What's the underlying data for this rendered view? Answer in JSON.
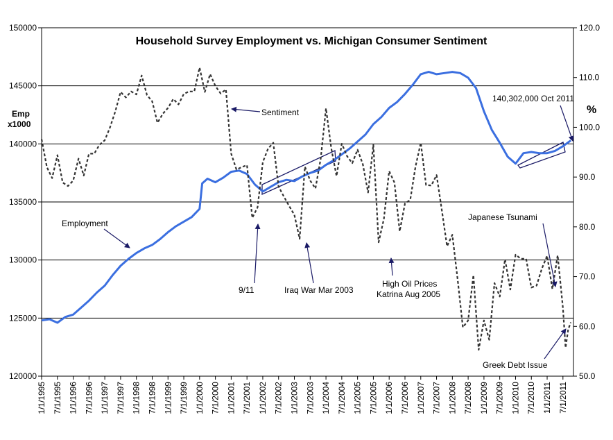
{
  "chart_data": {
    "type": "line",
    "title": "Household Survey Employment vs. Michigan Consumer Sentiment",
    "ylabel_left": [
      "Emp",
      "x1000"
    ],
    "ylabel_right": "%",
    "ylim_left": [
      120000,
      150000
    ],
    "ylim_right": [
      50,
      120
    ],
    "y_ticks_left": [
      "150000",
      "145000",
      "140000",
      "135000",
      "130000",
      "125000",
      "120000"
    ],
    "y_ticks_right": [
      "120.0",
      "110.0",
      "100.0",
      "90.0",
      "80.0",
      "70.0",
      "60.0",
      "50.0"
    ],
    "x_ticks": [
      "1/1/1995",
      "7/1/1995",
      "1/1/1996",
      "7/1/1996",
      "1/1/1997",
      "7/1/1997",
      "1/1/1998",
      "7/1/1998",
      "1/1/1999",
      "7/1/1999",
      "1/1/2000",
      "7/1/2000",
      "1/1/2001",
      "7/1/2001",
      "1/1/2002",
      "7/1/2002",
      "1/1/2003",
      "7/1/2003",
      "1/1/2004",
      "7/1/2004",
      "1/1/2005",
      "7/1/2005",
      "1/1/2006",
      "7/1/2006",
      "1/1/2007",
      "7/1/2007",
      "1/1/2008",
      "7/1/2008",
      "1/1/2009",
      "7/1/2009",
      "1/1/2010",
      "7/1/2010",
      "1/1/2011",
      "7/1/2011"
    ],
    "grid": "horizontal major lines",
    "series": [
      {
        "name": "Employment",
        "axis": "left",
        "color": "#3b6fe0",
        "style": "solid",
        "points": [
          [
            "1995-01",
            124800
          ],
          [
            "1995-04",
            124900
          ],
          [
            "1995-07",
            124600
          ],
          [
            "1995-10",
            125100
          ],
          [
            "1996-01",
            125300
          ],
          [
            "1996-04",
            125900
          ],
          [
            "1996-07",
            126500
          ],
          [
            "1996-10",
            127200
          ],
          [
            "1997-01",
            127800
          ],
          [
            "1997-04",
            128700
          ],
          [
            "1997-07",
            129500
          ],
          [
            "1997-10",
            130100
          ],
          [
            "1998-01",
            130600
          ],
          [
            "1998-04",
            131000
          ],
          [
            "1998-07",
            131300
          ],
          [
            "1998-10",
            131800
          ],
          [
            "1999-01",
            132400
          ],
          [
            "1999-04",
            132900
          ],
          [
            "1999-07",
            133300
          ],
          [
            "1999-10",
            133700
          ],
          [
            "2000-01",
            134400
          ],
          [
            "2000-02",
            136600
          ],
          [
            "2000-04",
            137000
          ],
          [
            "2000-07",
            136700
          ],
          [
            "2000-10",
            137100
          ],
          [
            "2001-01",
            137600
          ],
          [
            "2001-04",
            137700
          ],
          [
            "2001-07",
            137400
          ],
          [
            "2001-10",
            136500
          ],
          [
            "2002-01",
            135900
          ],
          [
            "2002-04",
            136300
          ],
          [
            "2002-07",
            136700
          ],
          [
            "2002-10",
            136900
          ],
          [
            "2003-01",
            136800
          ],
          [
            "2003-04",
            137200
          ],
          [
            "2003-07",
            137500
          ],
          [
            "2003-10",
            137700
          ],
          [
            "2004-01",
            138200
          ],
          [
            "2004-04",
            138600
          ],
          [
            "2004-07",
            139100
          ],
          [
            "2004-10",
            139600
          ],
          [
            "2005-01",
            140200
          ],
          [
            "2005-04",
            140800
          ],
          [
            "2005-07",
            141700
          ],
          [
            "2005-10",
            142300
          ],
          [
            "2006-01",
            143100
          ],
          [
            "2006-04",
            143600
          ],
          [
            "2006-07",
            144300
          ],
          [
            "2006-10",
            145100
          ],
          [
            "2007-01",
            146000
          ],
          [
            "2007-04",
            146200
          ],
          [
            "2007-07",
            146000
          ],
          [
            "2007-10",
            146100
          ],
          [
            "2008-01",
            146200
          ],
          [
            "2008-04",
            146100
          ],
          [
            "2008-07",
            145700
          ],
          [
            "2008-10",
            144800
          ],
          [
            "2009-01",
            142800
          ],
          [
            "2009-04",
            141200
          ],
          [
            "2009-07",
            140100
          ],
          [
            "2009-10",
            138900
          ],
          [
            "2010-01",
            138300
          ],
          [
            "2010-04",
            139200
          ],
          [
            "2010-07",
            139300
          ],
          [
            "2010-10",
            139200
          ],
          [
            "2011-01",
            139200
          ],
          [
            "2011-04",
            139400
          ],
          [
            "2011-07",
            139800
          ],
          [
            "2011-10",
            140302
          ]
        ]
      },
      {
        "name": "Sentiment",
        "axis": "right",
        "color": "#333333",
        "style": "dashed",
        "points": [
          [
            "1995-01",
            97.6
          ],
          [
            "1995-03",
            92.0
          ],
          [
            "1995-05",
            89.8
          ],
          [
            "1995-07",
            94.4
          ],
          [
            "1995-09",
            88.9
          ],
          [
            "1995-11",
            88.2
          ],
          [
            "1996-01",
            89.3
          ],
          [
            "1996-03",
            93.7
          ],
          [
            "1996-05",
            90.3
          ],
          [
            "1996-07",
            94.7
          ],
          [
            "1996-09",
            94.7
          ],
          [
            "1996-11",
            96.5
          ],
          [
            "1997-01",
            97.4
          ],
          [
            "1997-03",
            100.0
          ],
          [
            "1997-05",
            103.2
          ],
          [
            "1997-07",
            107.1
          ],
          [
            "1997-09",
            106.0
          ],
          [
            "1997-11",
            107.2
          ],
          [
            "1998-01",
            106.6
          ],
          [
            "1998-03",
            110.4
          ],
          [
            "1998-05",
            106.5
          ],
          [
            "1998-07",
            105.2
          ],
          [
            "1998-09",
            100.9
          ],
          [
            "1998-11",
            102.7
          ],
          [
            "1999-01",
            103.9
          ],
          [
            "1999-03",
            105.7
          ],
          [
            "1999-05",
            104.6
          ],
          [
            "1999-07",
            106.7
          ],
          [
            "1999-09",
            107.2
          ],
          [
            "1999-11",
            107.2
          ],
          [
            "2000-01",
            112.0
          ],
          [
            "2000-03",
            107.1
          ],
          [
            "2000-05",
            110.7
          ],
          [
            "2000-07",
            108.3
          ],
          [
            "2000-09",
            106.8
          ],
          [
            "2000-11",
            107.6
          ],
          [
            "2001-01",
            94.7
          ],
          [
            "2001-03",
            91.5
          ],
          [
            "2001-05",
            92.0
          ],
          [
            "2001-07",
            92.4
          ],
          [
            "2001-09",
            81.8
          ],
          [
            "2001-11",
            83.9
          ],
          [
            "2002-01",
            93.0
          ],
          [
            "2002-03",
            95.7
          ],
          [
            "2002-05",
            96.9
          ],
          [
            "2002-07",
            88.1
          ],
          [
            "2002-09",
            86.1
          ],
          [
            "2002-11",
            84.2
          ],
          [
            "2003-01",
            82.4
          ],
          [
            "2003-03",
            77.6
          ],
          [
            "2003-05",
            92.1
          ],
          [
            "2003-07",
            89.3
          ],
          [
            "2003-09",
            87.7
          ],
          [
            "2003-11",
            93.7
          ],
          [
            "2004-01",
            103.8
          ],
          [
            "2004-03",
            95.8
          ],
          [
            "2004-05",
            90.2
          ],
          [
            "2004-07",
            96.7
          ],
          [
            "2004-09",
            94.2
          ],
          [
            "2004-11",
            92.8
          ],
          [
            "2005-01",
            95.5
          ],
          [
            "2005-03",
            92.6
          ],
          [
            "2005-05",
            86.9
          ],
          [
            "2005-07",
            96.5
          ],
          [
            "2005-09",
            76.9
          ],
          [
            "2005-11",
            81.6
          ],
          [
            "2006-01",
            91.2
          ],
          [
            "2006-03",
            88.9
          ],
          [
            "2006-05",
            79.1
          ],
          [
            "2006-07",
            84.7
          ],
          [
            "2006-09",
            85.4
          ],
          [
            "2006-11",
            92.1
          ],
          [
            "2007-01",
            96.9
          ],
          [
            "2007-03",
            88.4
          ],
          [
            "2007-05",
            88.3
          ],
          [
            "2007-07",
            90.4
          ],
          [
            "2007-09",
            83.4
          ],
          [
            "2007-11",
            76.1
          ],
          [
            "2008-01",
            78.4
          ],
          [
            "2008-03",
            69.5
          ],
          [
            "2008-05",
            59.8
          ],
          [
            "2008-07",
            61.2
          ],
          [
            "2008-09",
            70.3
          ],
          [
            "2008-11",
            55.3
          ],
          [
            "2009-01",
            61.2
          ],
          [
            "2009-03",
            57.3
          ],
          [
            "2009-05",
            68.7
          ],
          [
            "2009-07",
            66.0
          ],
          [
            "2009-09",
            73.5
          ],
          [
            "2009-11",
            67.4
          ],
          [
            "2010-01",
            74.4
          ],
          [
            "2010-03",
            73.6
          ],
          [
            "2010-05",
            73.6
          ],
          [
            "2010-07",
            67.8
          ],
          [
            "2010-09",
            68.2
          ],
          [
            "2010-11",
            71.6
          ],
          [
            "2011-01",
            74.2
          ],
          [
            "2011-03",
            67.5
          ],
          [
            "2011-05",
            74.3
          ],
          [
            "2011-07",
            63.7
          ],
          [
            "2011-08",
            55.7
          ],
          [
            "2011-09",
            59.4
          ],
          [
            "2011-10",
            60.8
          ]
        ]
      }
    ],
    "annotations": [
      {
        "id": "sentiment",
        "text": "Sentiment"
      },
      {
        "id": "employment",
        "text": "Employment"
      },
      {
        "id": "nine_eleven",
        "text": "9/11"
      },
      {
        "id": "iraq",
        "text": "Iraq War Mar 2003"
      },
      {
        "id": "oil",
        "lines": [
          "High Oil Prices",
          "Katrina Aug 2005"
        ]
      },
      {
        "id": "tsunami",
        "text": "Japanese Tsunami"
      },
      {
        "id": "greek",
        "text": "Greek Debt Issue"
      },
      {
        "id": "latest",
        "text": "140,302,000 Oct 2011"
      }
    ]
  }
}
